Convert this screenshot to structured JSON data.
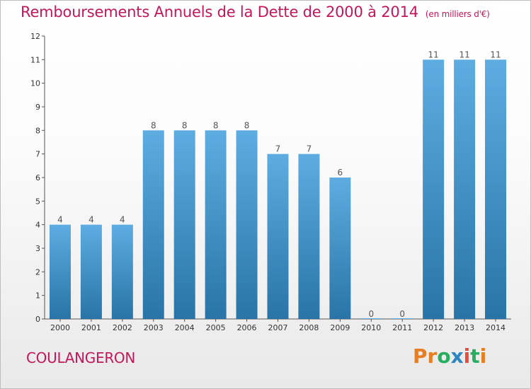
{
  "header": {
    "title": "Remboursements Annuels de la Dette de 2000 à 2014",
    "unit": "(en milliers d'€)"
  },
  "footer": {
    "place": "COULANGERON",
    "logo": "Proxiti"
  },
  "colors": {
    "title": "#c2185b",
    "bar_top": "#5dade2",
    "bar_bottom": "#2874a6",
    "logo_letters": [
      "#e67e22",
      "#e67e22",
      "#27ae60",
      "#2e86c1",
      "#e74c3c",
      "#27ae60",
      "#e67e22"
    ]
  },
  "chart_data": {
    "type": "bar",
    "title": "Remboursements Annuels de la Dette de 2000 à 2014",
    "xlabel": "",
    "ylabel": "(en milliers d'€)",
    "categories": [
      "2000",
      "2001",
      "2002",
      "2003",
      "2004",
      "2005",
      "2006",
      "2007",
      "2008",
      "2009",
      "2010",
      "2011",
      "2012",
      "2013",
      "2014"
    ],
    "values": [
      4,
      4,
      4,
      8,
      8,
      8,
      8,
      7,
      7,
      6,
      0,
      0,
      11,
      11,
      11
    ],
    "ylim": [
      0,
      12
    ],
    "yticks": [
      0,
      1,
      2,
      3,
      4,
      5,
      6,
      7,
      8,
      9,
      10,
      11,
      12
    ],
    "grid": false,
    "legend": "none"
  }
}
